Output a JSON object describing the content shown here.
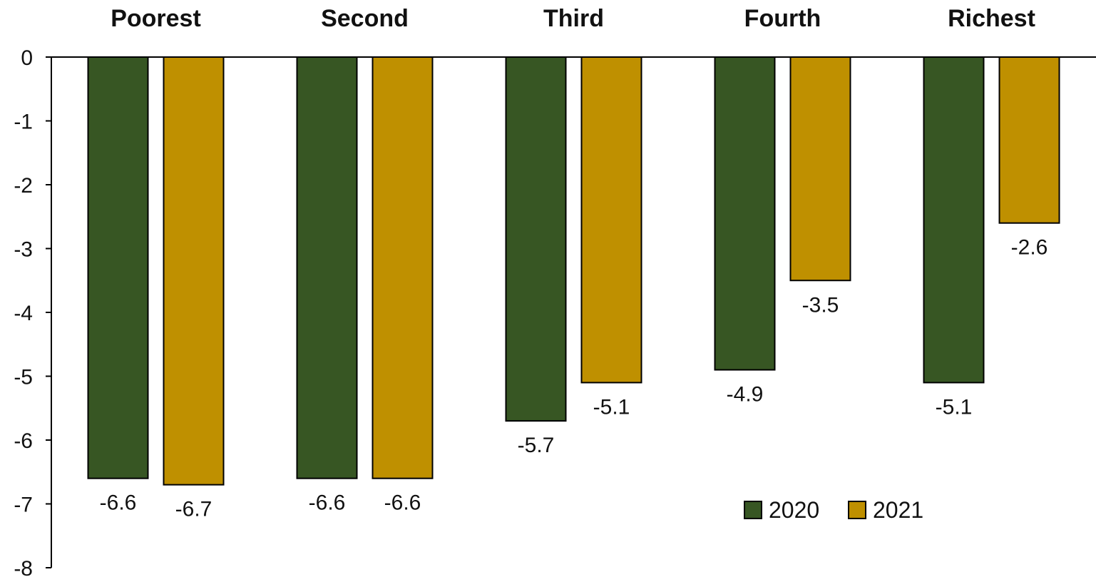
{
  "chart_data": {
    "type": "bar",
    "title": "",
    "xlabel": "",
    "ylabel": "",
    "categories": [
      "Poorest",
      "Second",
      "Third",
      "Fourth",
      "Richest"
    ],
    "series": [
      {
        "name": "2020",
        "color": "#375623",
        "values": [
          -6.6,
          -6.6,
          -5.7,
          -4.9,
          -5.1
        ]
      },
      {
        "name": "2021",
        "color": "#BF9000",
        "values": [
          -6.7,
          -6.6,
          -5.1,
          -3.5,
          -2.6
        ]
      }
    ],
    "ylim": [
      -8,
      0
    ],
    "yticks": [
      0,
      -1,
      -2,
      -3,
      -4,
      -5,
      -6,
      -7,
      -8
    ],
    "category_axis_position": "top",
    "grid": false,
    "legend_position": "bottom-right",
    "data_labels": true
  }
}
